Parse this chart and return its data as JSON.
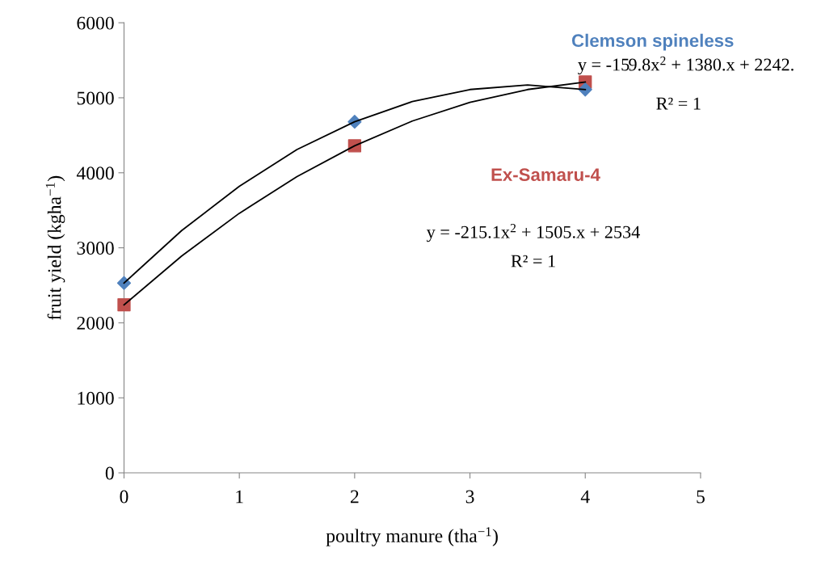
{
  "chart_data": {
    "type": "scatter",
    "xlabel": "poultry manure (tha$^{−1}$)",
    "ylabel": "fruit yield (kgha$^{−1}$)",
    "xlim": [
      0,
      5
    ],
    "xticks": [
      0,
      1,
      2,
      3,
      4,
      5
    ],
    "ylim": [
      0,
      6000
    ],
    "yticks": [
      0,
      1000,
      2000,
      3000,
      4000,
      5000,
      6000
    ],
    "grid": false,
    "legend": false,
    "series": [
      {
        "name": "Clemson spineless",
        "color": "#4f81bd",
        "marker": "diamond",
        "x": [
          0,
          2,
          4
        ],
        "values": [
          2530,
          4680,
          5110
        ]
      },
      {
        "name": "Ex-Samaru-4",
        "color": "#c0504d",
        "marker": "square",
        "x": [
          0,
          2,
          4
        ],
        "values": [
          2240,
          4360,
          5210
        ]
      },
      {
        "type": "line",
        "color": "#000000",
        "marker": "none",
        "x": [
          0,
          0.5,
          1,
          1.5,
          2,
          2.5,
          3,
          3.5,
          4
        ],
        "values": [
          2530,
          3230,
          3820,
          4310,
          4680,
          4950,
          5110,
          5170,
          5110
        ]
      },
      {
        "type": "line",
        "color": "#000000",
        "marker": "none",
        "x": [
          0,
          0.5,
          1,
          1.5,
          2,
          2.5,
          3,
          3.5,
          4
        ],
        "values": [
          2240,
          2890,
          3460,
          3950,
          4360,
          4690,
          4940,
          5110,
          5210
        ]
      }
    ],
    "annotations": [
      "y = -159.8x$^{2}$ + 1380.x + 2242.",
      "R² = 1",
      "y = -215.1x$^{2}$ + 1505.x + 2534",
      "R² = 1"
    ]
  }
}
